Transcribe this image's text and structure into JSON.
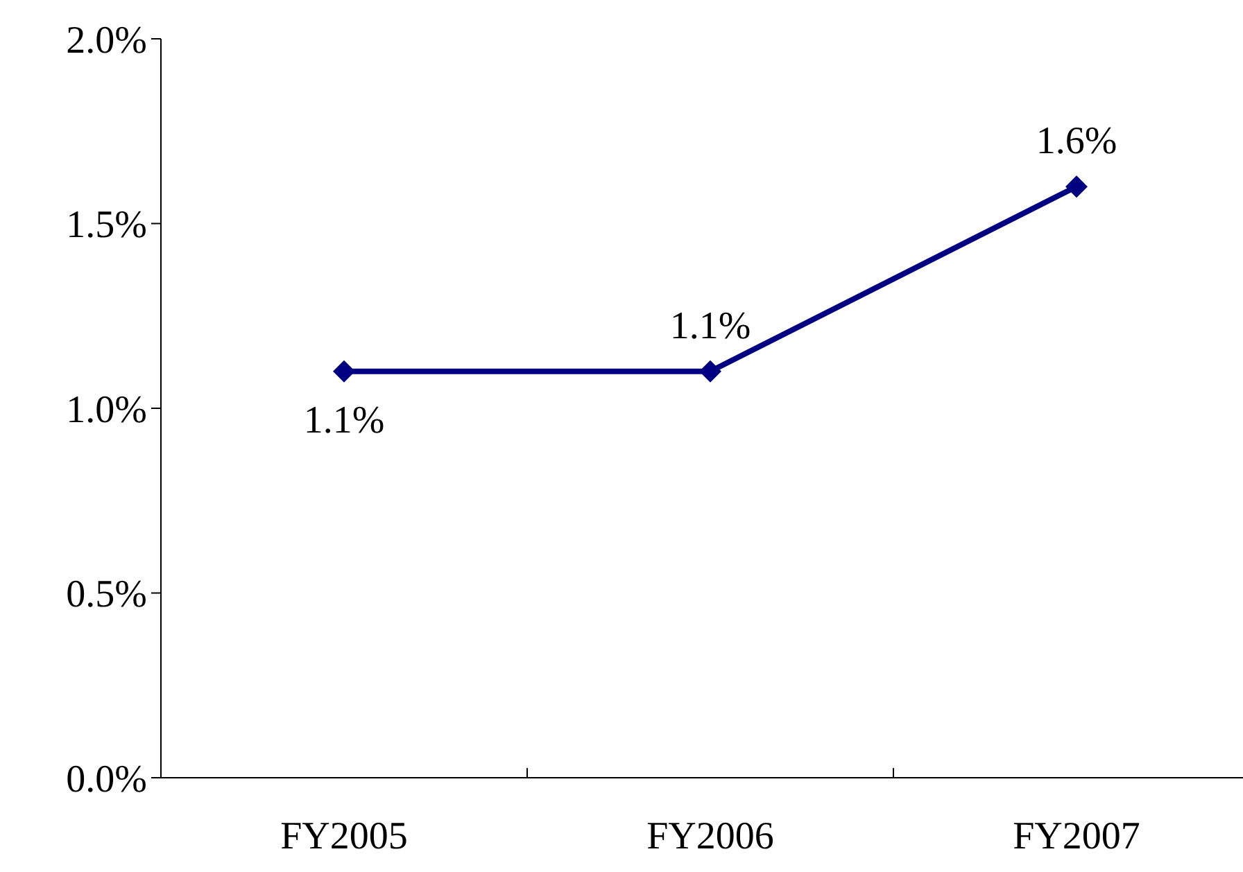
{
  "chart_data": {
    "type": "line",
    "categories": [
      "FY2005",
      "FY2006",
      "FY2007"
    ],
    "series": [
      {
        "color": "#000080",
        "values": [
          1.1,
          1.1,
          1.6
        ],
        "value_labels": [
          "1.1%",
          "1.1%",
          "1.6%"
        ]
      }
    ],
    "ylim": [
      0,
      2
    ],
    "yticks": [
      {
        "value": 0,
        "label": "0.0%"
      },
      {
        "value": 0.5,
        "label": "0.5%"
      },
      {
        "value": 1,
        "label": "1.0%"
      },
      {
        "value": 1.5,
        "label": "1.5%"
      },
      {
        "value": 2,
        "label": "2.0%"
      }
    ],
    "marker": "diamond",
    "line_style": "solid",
    "grid": false
  }
}
